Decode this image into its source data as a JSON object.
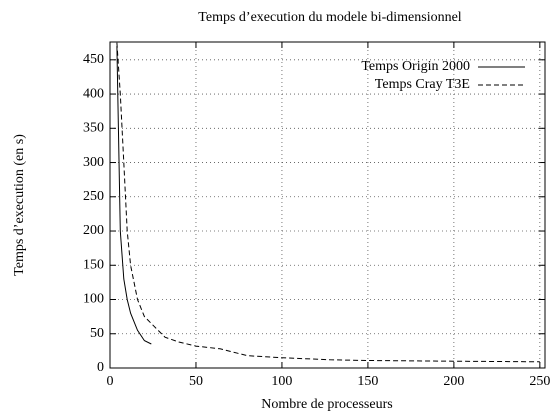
{
  "chart_data": {
    "type": "line",
    "title": "Temps d’execution du modele bi-dimensionnel",
    "x_label": "Nombre de processeurs",
    "y_label": "Temps d’execution (en s)",
    "series": [
      {
        "name": "Temps Origin 2000",
        "color": "#000000",
        "dash": "solid",
        "x": [
          4,
          6,
          8,
          10,
          12,
          16,
          20,
          24
        ],
        "values": [
          470,
          200,
          130,
          100,
          80,
          55,
          40,
          35
        ]
      },
      {
        "name": "Temps Cray T3E",
        "color": "#000000",
        "dash": "dashed",
        "x": [
          4,
          6,
          8,
          10,
          12,
          16,
          20,
          24,
          28,
          32,
          40,
          50,
          64,
          80,
          100,
          128,
          150,
          200,
          250
        ],
        "values": [
          475,
          400,
          300,
          200,
          150,
          100,
          75,
          65,
          55,
          45,
          38,
          32,
          28,
          18,
          15,
          12,
          11,
          10,
          9
        ]
      }
    ],
    "xlim": [
      0,
      253
    ],
    "ylim": [
      0,
      476
    ],
    "xticks": [
      0,
      50,
      100,
      150,
      200,
      250
    ],
    "yticks": [
      0,
      50,
      100,
      150,
      200,
      250,
      300,
      350,
      400,
      450
    ],
    "grid": true,
    "legend": "upper right"
  }
}
